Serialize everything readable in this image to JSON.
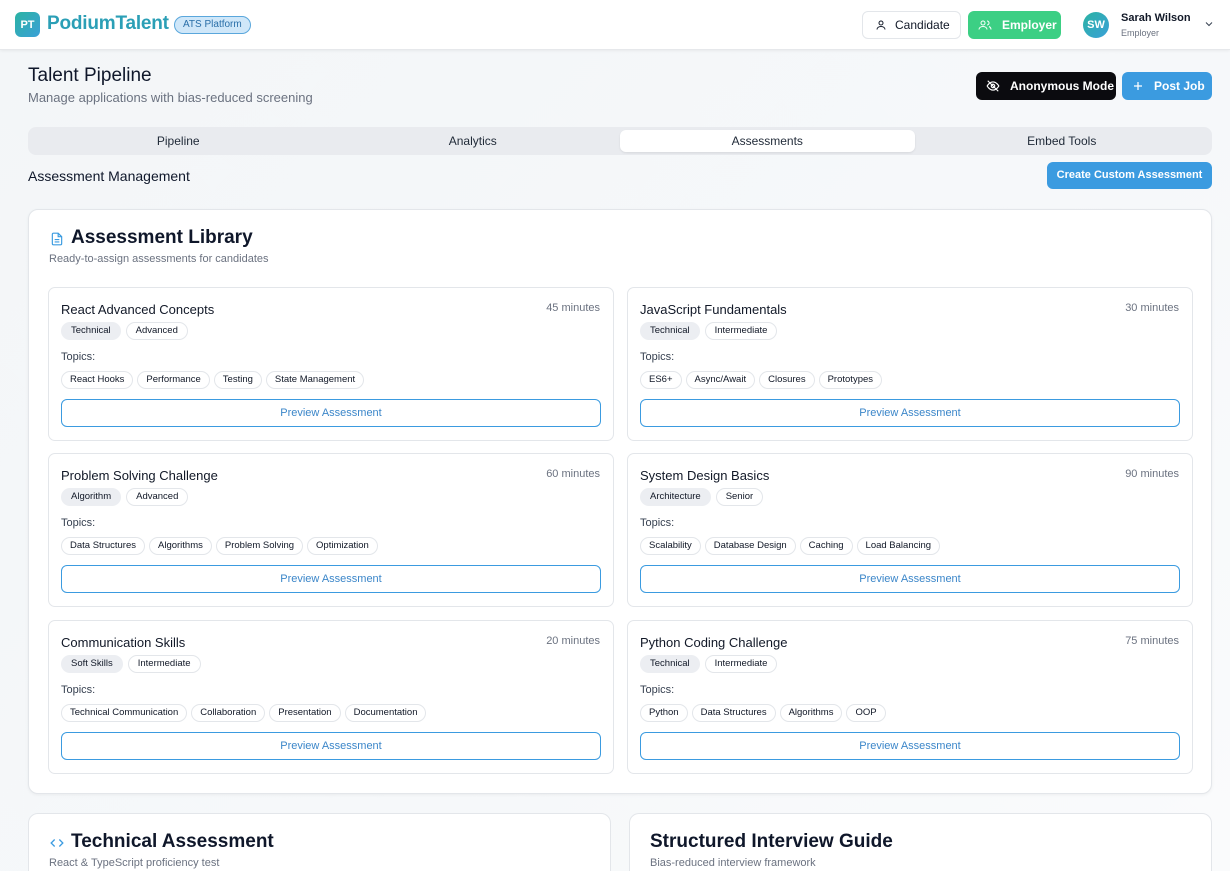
{
  "brand": {
    "initials": "PT",
    "name": "PodiumTalent",
    "badge": "ATS Platform"
  },
  "header": {
    "candidate_label": "Candidate",
    "employer_label": "Employer",
    "user": {
      "initials": "SW",
      "name": "Sarah Wilson",
      "role": "Employer"
    }
  },
  "page": {
    "title": "Talent Pipeline",
    "subtitle": "Manage applications with bias-reduced screening",
    "anonymous_label": "Anonymous Mode",
    "post_job_label": "Post Job"
  },
  "tabs": [
    {
      "label": "Pipeline",
      "active": false
    },
    {
      "label": "Analytics",
      "active": false
    },
    {
      "label": "Assessments",
      "active": true
    },
    {
      "label": "Embed Tools",
      "active": false
    }
  ],
  "management": {
    "title": "Assessment Management",
    "create_label": "Create Custom Assessment"
  },
  "library": {
    "title": "Assessment Library",
    "subtitle": "Ready-to-assign assessments for candidates",
    "topics_label": "Topics:",
    "preview_label": "Preview Assessment",
    "cards": [
      {
        "name": "React Advanced Concepts",
        "duration": "45 minutes",
        "tags": [
          "Technical",
          "Advanced"
        ],
        "topics": [
          "React Hooks",
          "Performance",
          "Testing",
          "State Management"
        ]
      },
      {
        "name": "JavaScript Fundamentals",
        "duration": "30 minutes",
        "tags": [
          "Technical",
          "Intermediate"
        ],
        "topics": [
          "ES6+",
          "Async/Await",
          "Closures",
          "Prototypes"
        ]
      },
      {
        "name": "Problem Solving Challenge",
        "duration": "60 minutes",
        "tags": [
          "Algorithm",
          "Advanced"
        ],
        "topics": [
          "Data Structures",
          "Algorithms",
          "Problem Solving",
          "Optimization"
        ]
      },
      {
        "name": "System Design Basics",
        "duration": "90 minutes",
        "tags": [
          "Architecture",
          "Senior"
        ],
        "topics": [
          "Scalability",
          "Database Design",
          "Caching",
          "Load Balancing"
        ]
      },
      {
        "name": "Communication Skills",
        "duration": "20 minutes",
        "tags": [
          "Soft Skills",
          "Intermediate"
        ],
        "topics": [
          "Technical Communication",
          "Collaboration",
          "Presentation",
          "Documentation"
        ]
      },
      {
        "name": "Python Coding Challenge",
        "duration": "75 minutes",
        "tags": [
          "Technical",
          "Intermediate"
        ],
        "topics": [
          "Python",
          "Data Structures",
          "Algorithms",
          "OOP"
        ]
      }
    ]
  },
  "bottom": [
    {
      "title": "Technical Assessment",
      "subtitle": "React & TypeScript proficiency test",
      "icon": "code-icon"
    },
    {
      "title": "Structured Interview Guide",
      "subtitle": "Bias-reduced interview framework",
      "icon": ""
    }
  ]
}
